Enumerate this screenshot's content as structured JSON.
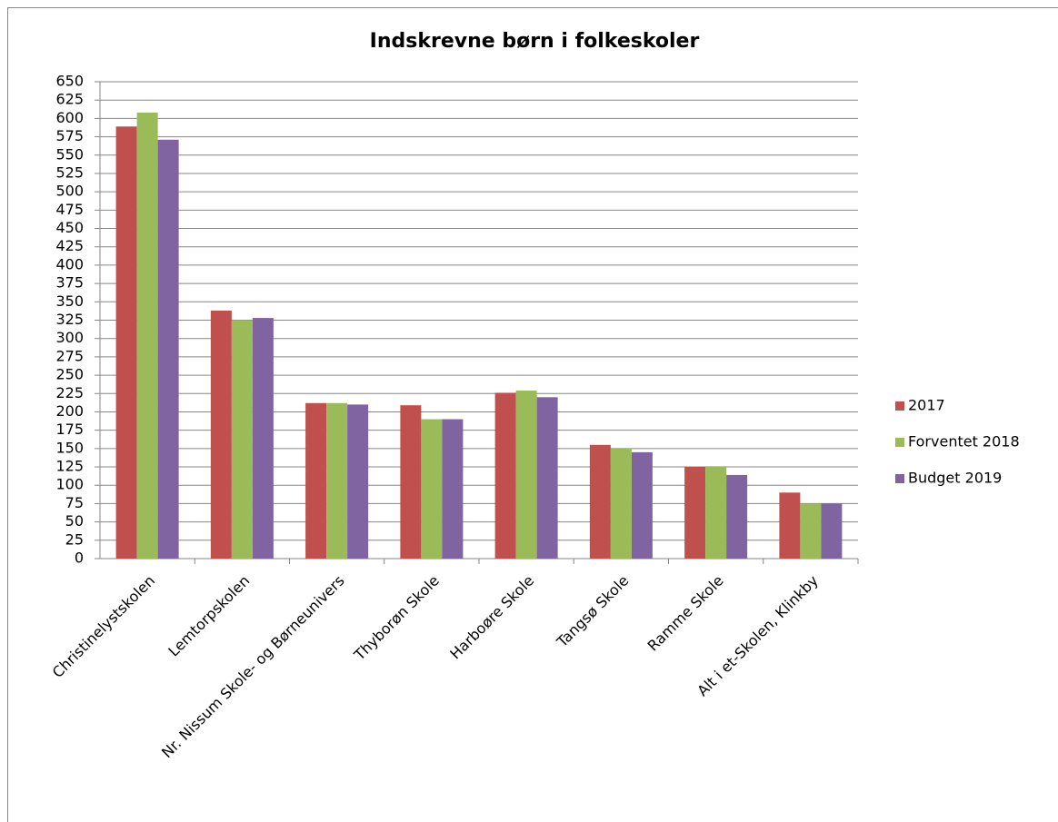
{
  "chart_data": {
    "type": "bar",
    "title": "Indskrevne børn i folkeskoler",
    "categories": [
      "Christinelystskolen",
      "Lemtorpskolen",
      "Nr. Nissum Skole- og Børneunivers",
      "Thyborøn Skole",
      "Harboøre Skole",
      "Tangsø Skole",
      "Ramme Skole",
      "Alt i et-Skolen, Klinkby"
    ],
    "series": [
      {
        "name": "2017",
        "color": "#c0504d",
        "values": [
          589,
          338,
          212,
          209,
          226,
          155,
          125,
          90
        ]
      },
      {
        "name": "Forventet 2018",
        "color": "#9bbb59",
        "values": [
          608,
          325,
          212,
          190,
          229,
          150,
          125,
          75
        ]
      },
      {
        "name": "Budget 2019",
        "color": "#8064a2",
        "values": [
          571,
          328,
          210,
          190,
          220,
          145,
          114,
          75
        ]
      }
    ],
    "ylim": [
      0,
      650
    ],
    "yticks": [
      0,
      25,
      50,
      75,
      100,
      125,
      150,
      175,
      200,
      225,
      250,
      275,
      300,
      325,
      350,
      375,
      400,
      425,
      450,
      475,
      500,
      525,
      550,
      575,
      600,
      625,
      650
    ],
    "grid": true,
    "legend": "right"
  }
}
